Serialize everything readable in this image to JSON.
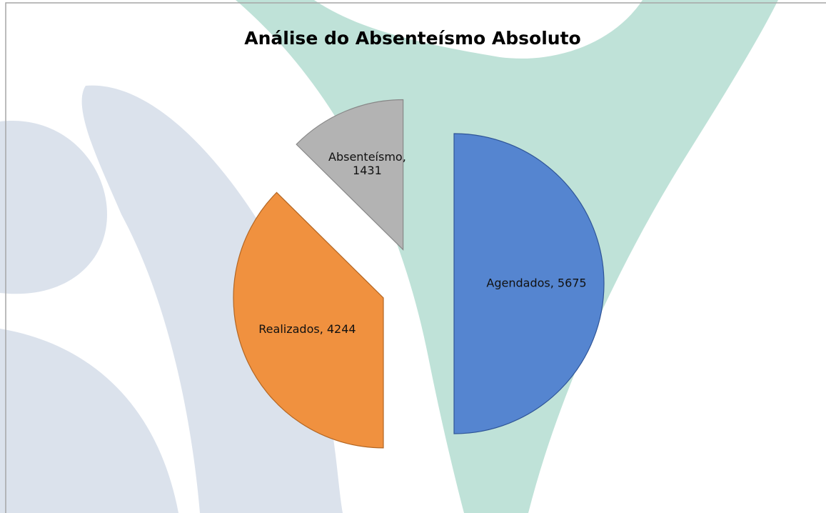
{
  "chart_data": {
    "type": "pie",
    "title": "Análise do Absenteísmo Absoluto",
    "values": [
      5675,
      4244,
      1431
    ],
    "value_labels": [
      "Agendados, 5675",
      "Realizados, 4244",
      "Absenteísmo, 1431"
    ],
    "colors": [
      "#5585d0",
      "#f0913f",
      "#b3b3b3"
    ]
  }
}
